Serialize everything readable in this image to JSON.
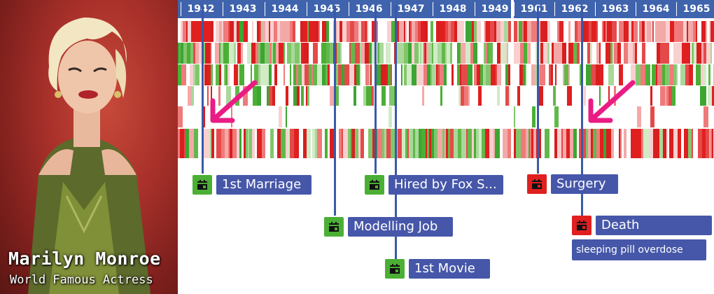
{
  "caption": {
    "name": "Marilyn Monroe",
    "subtitle": "World Famous Actress"
  },
  "timeline_left": {
    "years": [
      "1942",
      "1943",
      "1944",
      "1945",
      "1946",
      "1947",
      "1948",
      "1949"
    ]
  },
  "timeline_right": {
    "years": [
      "1961",
      "1962",
      "1963",
      "1964",
      "1965"
    ]
  },
  "colors": {
    "axis": "#3f63ad",
    "label": "#4657a9",
    "positive": "#4caf35",
    "negative": "#e02020",
    "arrow": "#ea1c84"
  },
  "events": [
    {
      "label": "1st Marriage",
      "icon": "calendar-icon",
      "status": "positive"
    },
    {
      "label": "Modelling Job",
      "icon": "calendar-icon",
      "status": "positive"
    },
    {
      "label": "Hired by Fox S...",
      "icon": "calendar-icon",
      "status": "positive"
    },
    {
      "label": "1st Movie",
      "icon": "calendar-icon",
      "status": "positive"
    },
    {
      "label": "Surgery",
      "icon": "calendar-icon",
      "status": "negative"
    },
    {
      "label": "Death",
      "icon": "calendar-icon",
      "status": "negative",
      "note": "sleeping pill overdose"
    }
  ]
}
